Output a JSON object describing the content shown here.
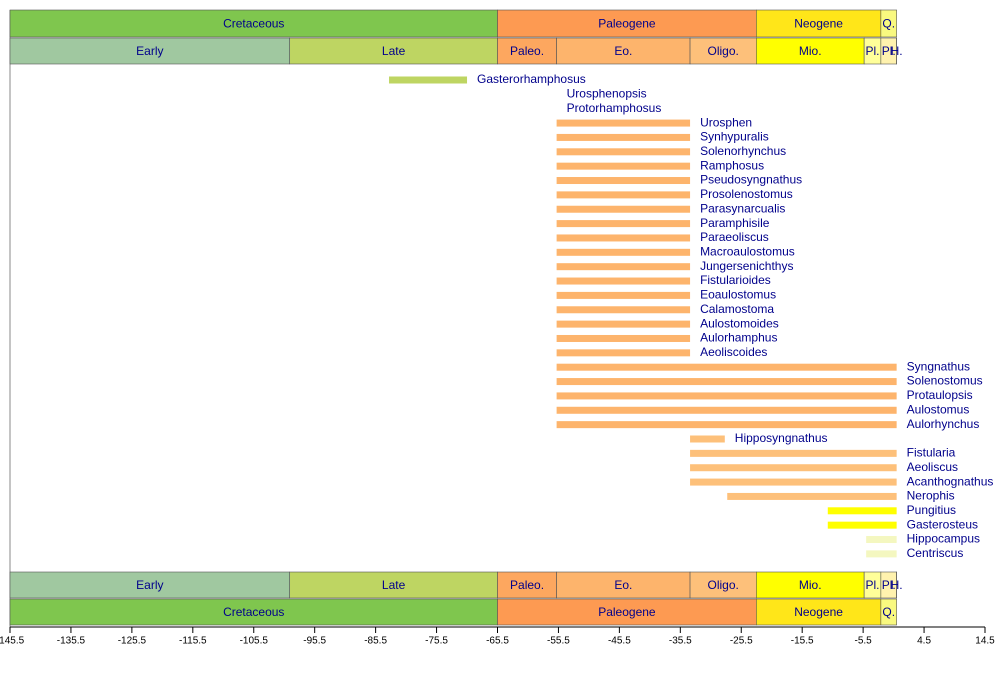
{
  "chart_data": {
    "type": "range_bar",
    "xlim": [
      -145.5,
      14.5
    ],
    "xticks": [
      -145.5,
      -135.5,
      -125.5,
      -115.5,
      -105.5,
      -95.5,
      -85.5,
      -75.5,
      -65.5,
      -55.5,
      -45.5,
      -35.5,
      -25.5,
      -15.5,
      -5.5,
      4.5,
      14.5
    ],
    "periods": [
      {
        "name": "Cretaceous",
        "start": -145.5,
        "end": -65.5,
        "color": "#7fc64e"
      },
      {
        "name": "Paleogene",
        "start": -65.5,
        "end": -23.03,
        "color": "#fd9a52"
      },
      {
        "name": "Neogene",
        "start": -23.03,
        "end": -2.588,
        "color": "#ffe619"
      },
      {
        "name": "Q.",
        "start": -2.588,
        "end": 0,
        "color": "#f9f97f"
      }
    ],
    "epochs": [
      {
        "name": "Early",
        "start": -145.5,
        "end": -99.6,
        "color": "#a0c8a0"
      },
      {
        "name": "Late",
        "start": -99.6,
        "end": -65.5,
        "color": "#bed562"
      },
      {
        "name": "Paleo.",
        "start": -65.5,
        "end": -55.8,
        "color": "#fda75f"
      },
      {
        "name": "Eo.",
        "start": -55.8,
        "end": -33.9,
        "color": "#fdb46c"
      },
      {
        "name": "Oligo.",
        "start": -33.9,
        "end": -23.03,
        "color": "#fdc07a"
      },
      {
        "name": "Mio.",
        "start": -23.03,
        "end": -5.332,
        "color": "#ffff00"
      },
      {
        "name": "Pl.",
        "start": -5.332,
        "end": -2.588,
        "color": "#ffff99"
      },
      {
        "name": "Pl.",
        "start": -2.588,
        "end": -0.0117,
        "color": "#fff2ae"
      },
      {
        "name": "H.",
        "start": -0.0117,
        "end": 0,
        "color": "#fef2e0"
      }
    ],
    "taxa": [
      {
        "name": "Gasterorhamphosus",
        "start": -83.3,
        "end": -70.5,
        "color": "#bed562"
      },
      {
        "name": "Urosphenopsis",
        "start": -55.8,
        "end": -55.8,
        "color": "#fdb46c"
      },
      {
        "name": "Protorhamphosus",
        "start": -55.8,
        "end": -55.8,
        "color": "#fdb46c"
      },
      {
        "name": "Urosphen",
        "start": -55.8,
        "end": -33.9,
        "color": "#fdb46c"
      },
      {
        "name": "Synhypuralis",
        "start": -55.8,
        "end": -33.9,
        "color": "#fdb46c"
      },
      {
        "name": "Solenorhynchus",
        "start": -55.8,
        "end": -33.9,
        "color": "#fdb46c"
      },
      {
        "name": "Ramphosus",
        "start": -55.8,
        "end": -33.9,
        "color": "#fdb46c"
      },
      {
        "name": "Pseudosyngnathus",
        "start": -55.8,
        "end": -33.9,
        "color": "#fdb46c"
      },
      {
        "name": "Prosolenostomus",
        "start": -55.8,
        "end": -33.9,
        "color": "#fdb46c"
      },
      {
        "name": "Parasynarcualis",
        "start": -55.8,
        "end": -33.9,
        "color": "#fdb46c"
      },
      {
        "name": "Paramphisile",
        "start": -55.8,
        "end": -33.9,
        "color": "#fdb46c"
      },
      {
        "name": "Paraeoliscus",
        "start": -55.8,
        "end": -33.9,
        "color": "#fdb46c"
      },
      {
        "name": "Macroaulostomus",
        "start": -55.8,
        "end": -33.9,
        "color": "#fdb46c"
      },
      {
        "name": "Jungersenichthys",
        "start": -55.8,
        "end": -33.9,
        "color": "#fdb46c"
      },
      {
        "name": "Fistularioides",
        "start": -55.8,
        "end": -33.9,
        "color": "#fdb46c"
      },
      {
        "name": "Eoaulostomus",
        "start": -55.8,
        "end": -33.9,
        "color": "#fdb46c"
      },
      {
        "name": "Calamostoma",
        "start": -55.8,
        "end": -33.9,
        "color": "#fdb46c"
      },
      {
        "name": "Aulostomoides",
        "start": -55.8,
        "end": -33.9,
        "color": "#fdb46c"
      },
      {
        "name": "Aulorhamphus",
        "start": -55.8,
        "end": -33.9,
        "color": "#fdb46c"
      },
      {
        "name": "Aeoliscoides",
        "start": -55.8,
        "end": -33.9,
        "color": "#fdb46c"
      },
      {
        "name": "Syngnathus",
        "start": -55.8,
        "end": 0,
        "color": "#fdb46c"
      },
      {
        "name": "Solenostomus",
        "start": -55.8,
        "end": 0,
        "color": "#fdb46c"
      },
      {
        "name": "Protaulopsis",
        "start": -55.8,
        "end": 0,
        "color": "#fdb46c"
      },
      {
        "name": "Aulostomus",
        "start": -55.8,
        "end": 0,
        "color": "#fdb46c"
      },
      {
        "name": "Aulorhynchus",
        "start": -55.8,
        "end": 0,
        "color": "#fdb46c"
      },
      {
        "name": "Hipposyngnathus",
        "start": -33.9,
        "end": -28.2,
        "color": "#fdc07a"
      },
      {
        "name": "Fistularia",
        "start": -33.9,
        "end": 0,
        "color": "#fdc07a"
      },
      {
        "name": "Aeoliscus",
        "start": -33.9,
        "end": 0,
        "color": "#fdc07a"
      },
      {
        "name": "Acanthognathus",
        "start": -33.9,
        "end": 0,
        "color": "#fdc07a"
      },
      {
        "name": "Nerophis",
        "start": -27.8,
        "end": 0,
        "color": "#fdc07a"
      },
      {
        "name": "Pungitius",
        "start": -11.3,
        "end": 0,
        "color": "#ffff00"
      },
      {
        "name": "Gasterosteus",
        "start": -11.3,
        "end": 0,
        "color": "#ffff00"
      },
      {
        "name": "Hippocampus",
        "start": -5.0,
        "end": 0,
        "color": "#f4f7c0"
      },
      {
        "name": "Centriscus",
        "start": -5.0,
        "end": 0,
        "color": "#f4f7c0"
      }
    ]
  }
}
